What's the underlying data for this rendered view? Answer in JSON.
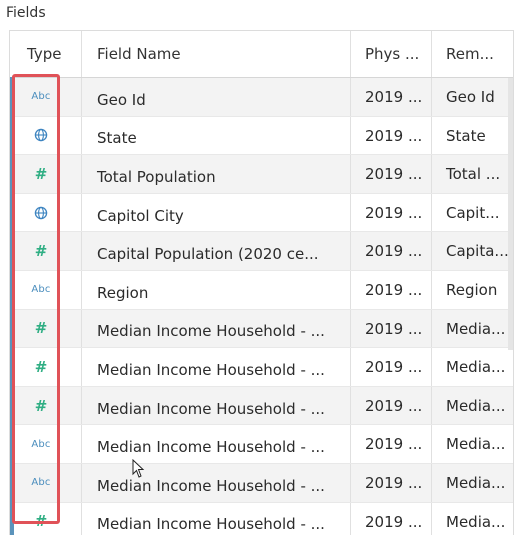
{
  "panel_title": "Fields",
  "columns": {
    "type": "Type",
    "field_name": "Field Name",
    "physical": "Phys ...",
    "remote": "Rem..."
  },
  "rows": [
    {
      "type": "string",
      "type_icon": "abc-icon",
      "type_label": "Abc",
      "field_name": "Geo Id",
      "physical": "2019 ...",
      "remote": "Geo Id"
    },
    {
      "type": "geo",
      "type_icon": "globe-icon",
      "type_label": "",
      "field_name": "State",
      "physical": "2019 ...",
      "remote": "State"
    },
    {
      "type": "number",
      "type_icon": "hash-icon",
      "type_label": "#",
      "field_name": "Total Population",
      "physical": "2019 ...",
      "remote": "Total ..."
    },
    {
      "type": "geo",
      "type_icon": "globe-icon",
      "type_label": "",
      "field_name": "Capitol City",
      "physical": "2019 ...",
      "remote": "Capit..."
    },
    {
      "type": "number",
      "type_icon": "hash-icon",
      "type_label": "#",
      "field_name": "Capital Population (2020 ce...",
      "physical": "2019 ...",
      "remote": "Capita..."
    },
    {
      "type": "string",
      "type_icon": "abc-icon",
      "type_label": "Abc",
      "field_name": "Region",
      "physical": "2019 ...",
      "remote": "Region"
    },
    {
      "type": "number",
      "type_icon": "hash-icon",
      "type_label": "#",
      "field_name": "Median Income Household - ...",
      "physical": "2019 ...",
      "remote": "Media..."
    },
    {
      "type": "number",
      "type_icon": "hash-icon",
      "type_label": "#",
      "field_name": "Median Income Household - ...",
      "physical": "2019 ...",
      "remote": "Media..."
    },
    {
      "type": "number",
      "type_icon": "hash-icon",
      "type_label": "#",
      "field_name": "Median Income Household - ...",
      "physical": "2019 ...",
      "remote": "Media..."
    },
    {
      "type": "string",
      "type_icon": "abc-icon",
      "type_label": "Abc",
      "field_name": "Median Income Household - ...",
      "physical": "2019 ...",
      "remote": "Media..."
    },
    {
      "type": "string",
      "type_icon": "abc-icon",
      "type_label": "Abc",
      "field_name": "Median Income Household - ...",
      "physical": "2019 ...",
      "remote": "Media..."
    },
    {
      "type": "number",
      "type_icon": "hash-icon",
      "type_label": "#",
      "field_name": "Median Income Household - ...",
      "physical": "2019 ...",
      "remote": "Media..."
    }
  ],
  "colors": {
    "accent": "#5b93bb",
    "highlight": "#e05258",
    "abc": "#4a8dbd",
    "number": "#2fae83",
    "globe": "#3d84c0"
  }
}
